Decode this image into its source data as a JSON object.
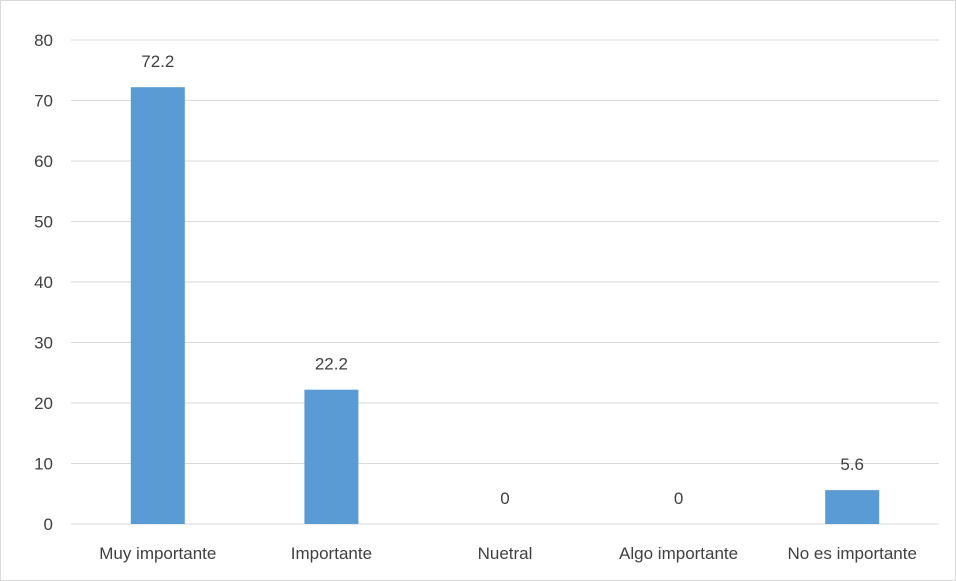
{
  "chart_data": {
    "type": "bar",
    "title": "",
    "xlabel": "",
    "ylabel": "",
    "categories": [
      "Muy importante",
      "Importante",
      "Nuetral",
      "Algo importante",
      "No es importante"
    ],
    "values": [
      72.2,
      22.2,
      0,
      0,
      5.6
    ],
    "data_labels": [
      "72.2",
      "22.2",
      "0",
      "0",
      "5.6"
    ],
    "ylim": [
      0,
      80
    ],
    "yticks": [
      0,
      10,
      20,
      30,
      40,
      50,
      60,
      70,
      80
    ],
    "grid": true,
    "legend": "none",
    "bar_color": "#5b9bd5",
    "grid_color": "#d9d9d9"
  }
}
